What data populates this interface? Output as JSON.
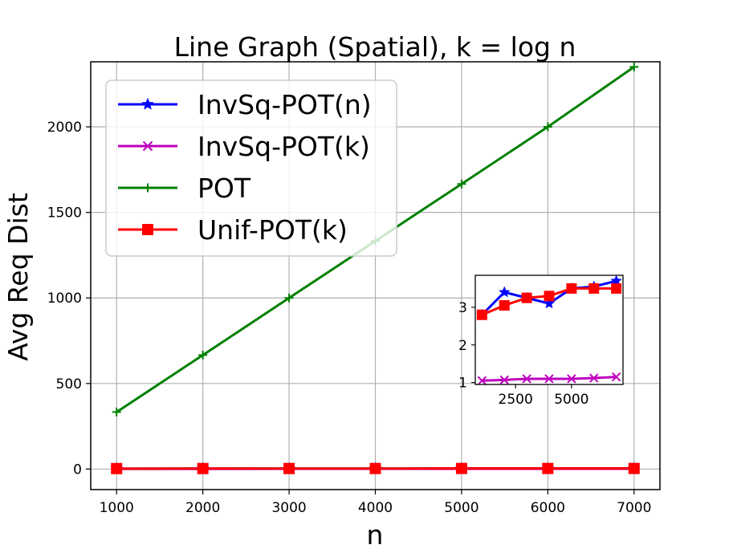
{
  "chart_data": [
    {
      "type": "line",
      "title": "Line Graph (Spatial), k = log n",
      "xlabel": "n",
      "ylabel": "Avg Req Dist",
      "xlim": [
        700,
        7300
      ],
      "ylim": [
        -120,
        2380
      ],
      "x_ticks": [
        1000,
        2000,
        3000,
        4000,
        5000,
        6000,
        7000
      ],
      "y_ticks": [
        0,
        500,
        1000,
        1500,
        2000
      ],
      "grid": true,
      "legend_position": "top-left",
      "x": [
        1000,
        2000,
        3000,
        4000,
        5000,
        6000,
        7000
      ],
      "series": [
        {
          "name": "InvSq-POT(n)",
          "color": "#0000ff",
          "marker": "star",
          "values": [
            2.8,
            3.4,
            3.25,
            3.1,
            3.5,
            3.55,
            3.7
          ]
        },
        {
          "name": "InvSq-POT(k)",
          "color": "#bf00bf",
          "marker": "x",
          "values": [
            1.05,
            1.07,
            1.1,
            1.1,
            1.1,
            1.12,
            1.15
          ]
        },
        {
          "name": "POT",
          "color": "#008000",
          "marker": "plus",
          "values": [
            333,
            666,
            1000,
            1333,
            1666,
            2000,
            2350
          ]
        },
        {
          "name": "Unif-POT(k)",
          "color": "#ff0000",
          "marker": "square",
          "values": [
            2.8,
            3.05,
            3.25,
            3.3,
            3.5,
            3.5,
            3.5
          ]
        }
      ]
    },
    {
      "type": "line",
      "role": "inset",
      "title": "",
      "xlabel": "",
      "ylabel": "",
      "xlim": [
        700,
        7300
      ],
      "ylim": [
        0.95,
        3.85
      ],
      "x_ticks": [
        2500,
        5000
      ],
      "y_ticks": [
        1,
        2,
        3
      ],
      "grid": false,
      "x": [
        1000,
        2000,
        3000,
        4000,
        5000,
        6000,
        7000
      ],
      "series": [
        {
          "name": "InvSq-POT(n)",
          "color": "#0000ff",
          "marker": "star",
          "values": [
            2.8,
            3.4,
            3.25,
            3.1,
            3.5,
            3.55,
            3.7
          ]
        },
        {
          "name": "InvSq-POT(k)",
          "color": "#bf00bf",
          "marker": "x",
          "values": [
            1.05,
            1.07,
            1.1,
            1.1,
            1.1,
            1.12,
            1.15
          ]
        },
        {
          "name": "Unif-POT(k)",
          "color": "#ff0000",
          "marker": "square",
          "values": [
            2.8,
            3.05,
            3.25,
            3.3,
            3.5,
            3.5,
            3.5
          ]
        }
      ]
    }
  ]
}
